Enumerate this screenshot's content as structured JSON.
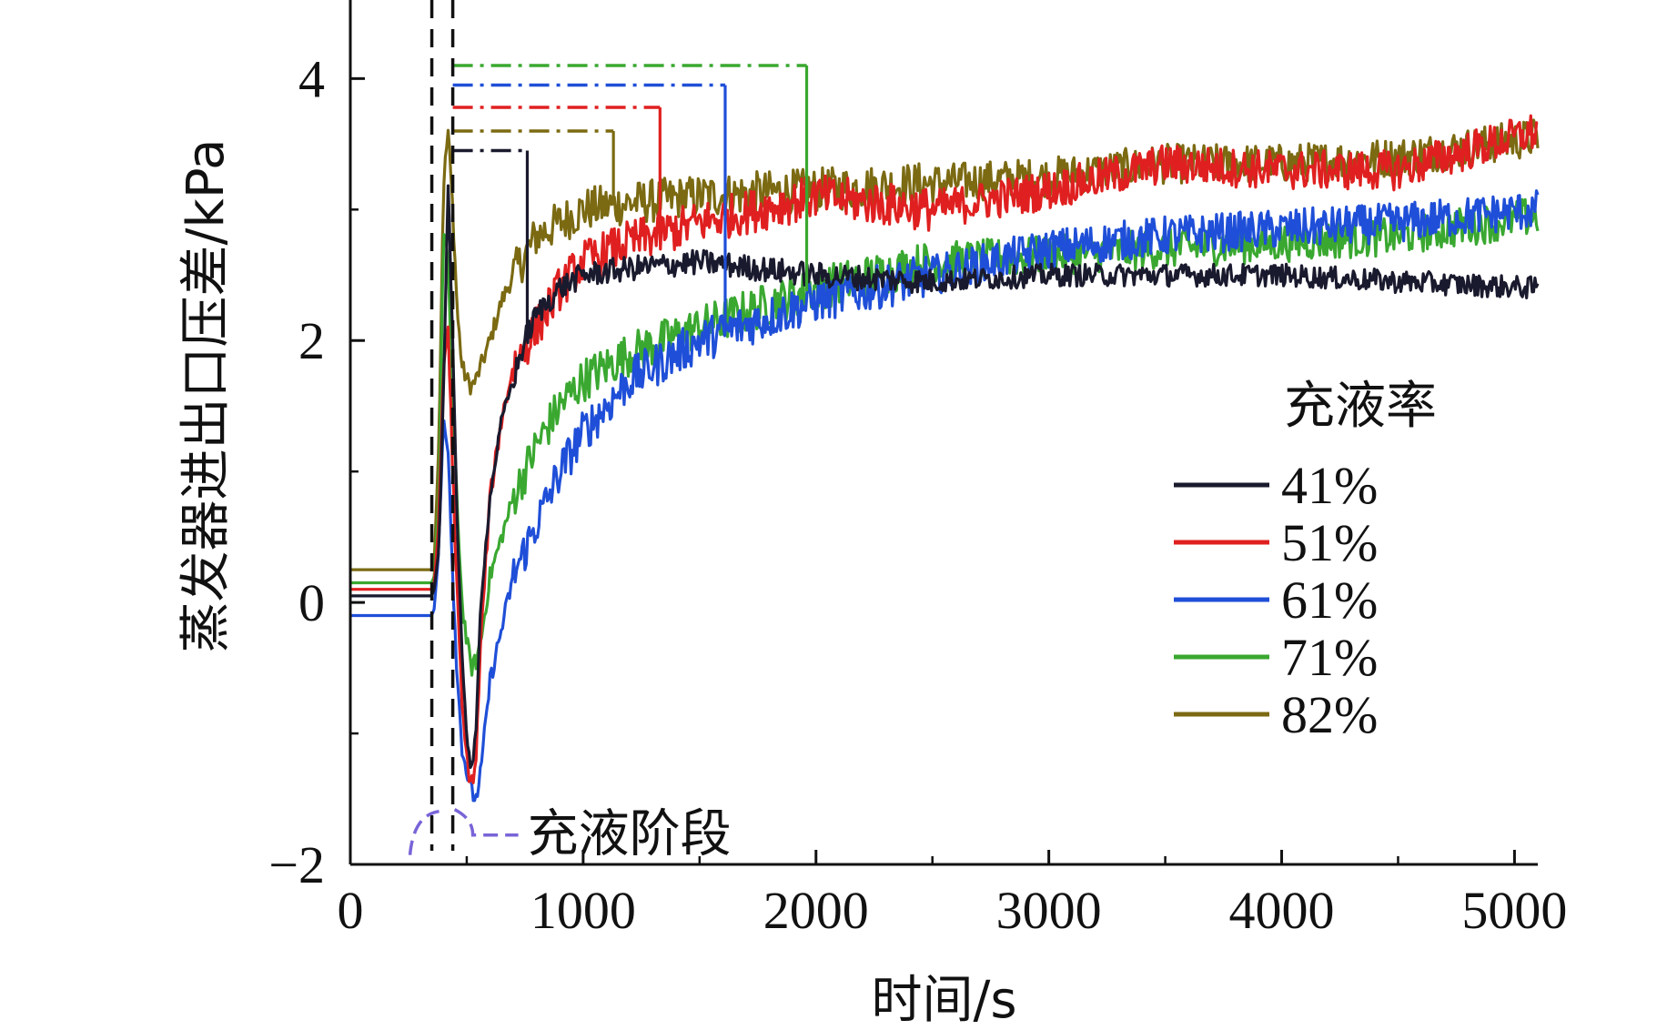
{
  "chart_data": {
    "type": "line",
    "title": "",
    "xlabel": "时间/s",
    "ylabel": "蒸发器进出口压差/kPa",
    "xlim": [
      0,
      5100
    ],
    "ylim": [
      -2,
      4.6
    ],
    "xticks": [
      0,
      1000,
      2000,
      3000,
      4000,
      5000
    ],
    "xtick_labels": [
      "0",
      "1000",
      "2000",
      "3000",
      "4000",
      "5000"
    ],
    "yticks": [
      -2,
      0,
      2,
      4
    ],
    "ytick_labels": [
      "−2",
      "0",
      "2",
      "4"
    ],
    "grid": false,
    "legend": {
      "title": "充液率",
      "position": "right"
    },
    "annotation": {
      "label": "充液阶段",
      "x_range": [
        350,
        440
      ]
    },
    "series": [
      {
        "name": "41%",
        "color": "#1a1a2e",
        "points": [
          [
            0,
            0.05
          ],
          [
            350,
            0.05
          ],
          [
            360,
            0.1
          ],
          [
            380,
            0.4
          ],
          [
            400,
            1.6
          ],
          [
            420,
            3.2
          ],
          [
            440,
            2.0
          ],
          [
            460,
            0.5
          ],
          [
            480,
            -0.4
          ],
          [
            500,
            -1.0
          ],
          [
            520,
            -1.3
          ],
          [
            540,
            -1.0
          ],
          [
            560,
            0.0
          ],
          [
            600,
            0.8
          ],
          [
            650,
            1.4
          ],
          [
            700,
            1.7
          ],
          [
            750,
            2.0
          ],
          [
            800,
            2.2
          ],
          [
            900,
            2.4
          ],
          [
            1000,
            2.5
          ],
          [
            1200,
            2.55
          ],
          [
            1500,
            2.6
          ],
          [
            2000,
            2.5
          ],
          [
            2500,
            2.45
          ],
          [
            3000,
            2.5
          ],
          [
            3500,
            2.5
          ],
          [
            4000,
            2.5
          ],
          [
            4500,
            2.45
          ],
          [
            5100,
            2.4
          ]
        ],
        "peak": {
          "value": 3.45,
          "x_start": 440,
          "x_end": 760
        }
      },
      {
        "name": "51%",
        "color": "#e02020",
        "points": [
          [
            0,
            0.1
          ],
          [
            350,
            0.1
          ],
          [
            360,
            0.15
          ],
          [
            380,
            0.6
          ],
          [
            400,
            1.8
          ],
          [
            420,
            2.1
          ],
          [
            440,
            1.0
          ],
          [
            460,
            0.0
          ],
          [
            480,
            -0.8
          ],
          [
            500,
            -1.2
          ],
          [
            520,
            -1.4
          ],
          [
            540,
            -1.2
          ],
          [
            560,
            -0.3
          ],
          [
            600,
            0.8
          ],
          [
            650,
            1.4
          ],
          [
            700,
            1.8
          ],
          [
            800,
            2.1
          ],
          [
            900,
            2.4
          ],
          [
            1000,
            2.6
          ],
          [
            1200,
            2.75
          ],
          [
            1500,
            2.9
          ],
          [
            2000,
            3.1
          ],
          [
            2500,
            3.0
          ],
          [
            3000,
            3.15
          ],
          [
            3500,
            3.35
          ],
          [
            4000,
            3.3
          ],
          [
            4500,
            3.3
          ],
          [
            5100,
            3.6
          ]
        ],
        "peak": {
          "value": 3.78,
          "x_start": 440,
          "x_end": 1330
        }
      },
      {
        "name": "61%",
        "color": "#1f4fd8",
        "points": [
          [
            0,
            -0.1
          ],
          [
            350,
            -0.1
          ],
          [
            360,
            -0.05
          ],
          [
            380,
            0.4
          ],
          [
            400,
            1.4
          ],
          [
            420,
            1.2
          ],
          [
            440,
            0.2
          ],
          [
            460,
            -0.6
          ],
          [
            480,
            -1.1
          ],
          [
            500,
            -1.3
          ],
          [
            520,
            -1.45
          ],
          [
            540,
            -1.5
          ],
          [
            560,
            -1.3
          ],
          [
            600,
            -0.6
          ],
          [
            650,
            -0.2
          ],
          [
            700,
            0.2
          ],
          [
            800,
            0.6
          ],
          [
            900,
            1.0
          ],
          [
            1000,
            1.3
          ],
          [
            1200,
            1.7
          ],
          [
            1500,
            2.0
          ],
          [
            2000,
            2.3
          ],
          [
            2500,
            2.5
          ],
          [
            3000,
            2.7
          ],
          [
            3500,
            2.8
          ],
          [
            4000,
            2.85
          ],
          [
            4500,
            2.9
          ],
          [
            5100,
            3.0
          ]
        ],
        "peak": {
          "value": 3.95,
          "x_start": 440,
          "x_end": 1610
        }
      },
      {
        "name": "71%",
        "color": "#3aa830",
        "points": [
          [
            0,
            0.15
          ],
          [
            350,
            0.15
          ],
          [
            360,
            0.2
          ],
          [
            380,
            0.8
          ],
          [
            400,
            2.8
          ],
          [
            420,
            2.6
          ],
          [
            440,
            1.5
          ],
          [
            460,
            0.7
          ],
          [
            480,
            0.0
          ],
          [
            500,
            -0.3
          ],
          [
            520,
            -0.5
          ],
          [
            540,
            -0.45
          ],
          [
            560,
            -0.3
          ],
          [
            600,
            0.2
          ],
          [
            650,
            0.5
          ],
          [
            700,
            0.8
          ],
          [
            800,
            1.2
          ],
          [
            900,
            1.5
          ],
          [
            1000,
            1.7
          ],
          [
            1200,
            1.9
          ],
          [
            1500,
            2.1
          ],
          [
            2000,
            2.4
          ],
          [
            2500,
            2.6
          ],
          [
            3000,
            2.65
          ],
          [
            3500,
            2.7
          ],
          [
            4000,
            2.75
          ],
          [
            4500,
            2.8
          ],
          [
            5100,
            2.95
          ]
        ],
        "peak": {
          "value": 4.1,
          "x_start": 440,
          "x_end": 1960
        }
      },
      {
        "name": "82%",
        "color": "#7b6a12",
        "points": [
          [
            0,
            0.25
          ],
          [
            350,
            0.25
          ],
          [
            360,
            0.3
          ],
          [
            380,
            1.2
          ],
          [
            400,
            3.2
          ],
          [
            420,
            3.6
          ],
          [
            440,
            3.0
          ],
          [
            460,
            2.2
          ],
          [
            480,
            1.8
          ],
          [
            500,
            1.7
          ],
          [
            520,
            1.65
          ],
          [
            540,
            1.7
          ],
          [
            560,
            1.8
          ],
          [
            600,
            2.0
          ],
          [
            650,
            2.3
          ],
          [
            700,
            2.5
          ],
          [
            800,
            2.8
          ],
          [
            900,
            2.9
          ],
          [
            1000,
            3.0
          ],
          [
            1200,
            3.05
          ],
          [
            1500,
            3.1
          ],
          [
            2000,
            3.15
          ],
          [
            2500,
            3.2
          ],
          [
            3000,
            3.25
          ],
          [
            3500,
            3.35
          ],
          [
            4000,
            3.35
          ],
          [
            4500,
            3.4
          ],
          [
            5100,
            3.55
          ]
        ],
        "peak": {
          "value": 3.6,
          "x_start": 440,
          "x_end": 1130
        }
      }
    ]
  }
}
